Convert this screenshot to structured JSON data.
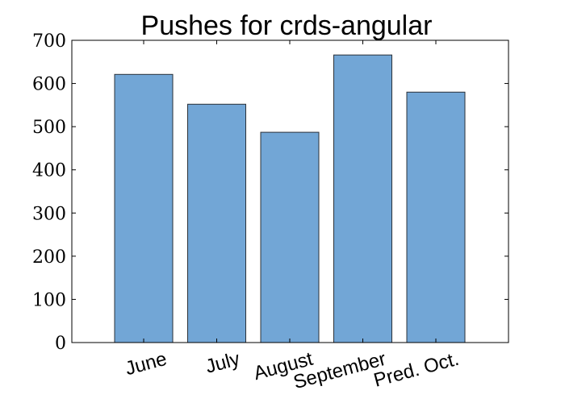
{
  "chart_data": {
    "type": "bar",
    "title": "Pushes for crds-angular",
    "xlabel": "",
    "ylabel": "",
    "categories": [
      "June",
      "July",
      "August",
      "September",
      "Pred. Oct."
    ],
    "values": [
      621,
      552,
      487,
      666,
      580
    ],
    "ylim": [
      0,
      700
    ],
    "yticks": [
      0,
      100,
      200,
      300,
      400,
      500,
      600,
      700
    ],
    "ytick_labels": [
      "0",
      "100",
      "200",
      "300",
      "400",
      "500",
      "600",
      "700"
    ],
    "grid": false,
    "legend": "none",
    "bar_color": "#72a6d6",
    "bar_edge_color": "#2b3138"
  }
}
